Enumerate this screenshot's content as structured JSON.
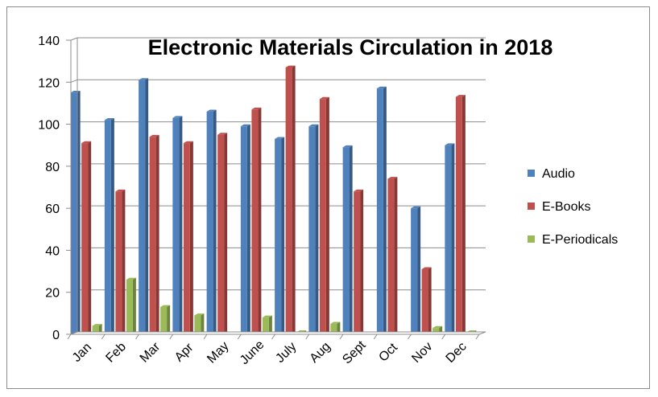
{
  "chart_data": {
    "type": "bar",
    "title": "Electronic Materials Circulation in 2018",
    "xlabel": "",
    "ylabel": "",
    "ylim": [
      0,
      140
    ],
    "yticks": [
      0,
      20,
      40,
      60,
      80,
      100,
      120,
      140
    ],
    "grid": true,
    "legend_position": "right",
    "categories": [
      "Jan",
      "Feb",
      "Mar",
      "Apr",
      "May",
      "June",
      "July",
      "Aug",
      "Sept",
      "Oct",
      "Nov",
      "Dec"
    ],
    "series": [
      {
        "name": "Audio",
        "color": "#4f81bd",
        "values": [
          115,
          102,
          121,
          103,
          106,
          99,
          93,
          99,
          89,
          117,
          60,
          90
        ]
      },
      {
        "name": "E-Books",
        "color": "#c0504d",
        "values": [
          91,
          68,
          94,
          91,
          95,
          107,
          127,
          112,
          68,
          74,
          31,
          113
        ]
      },
      {
        "name": "E-Periodicals",
        "color": "#9bbb59",
        "values": [
          4,
          26,
          13,
          9,
          0,
          8,
          1,
          5,
          0,
          0,
          3,
          1
        ]
      }
    ]
  }
}
